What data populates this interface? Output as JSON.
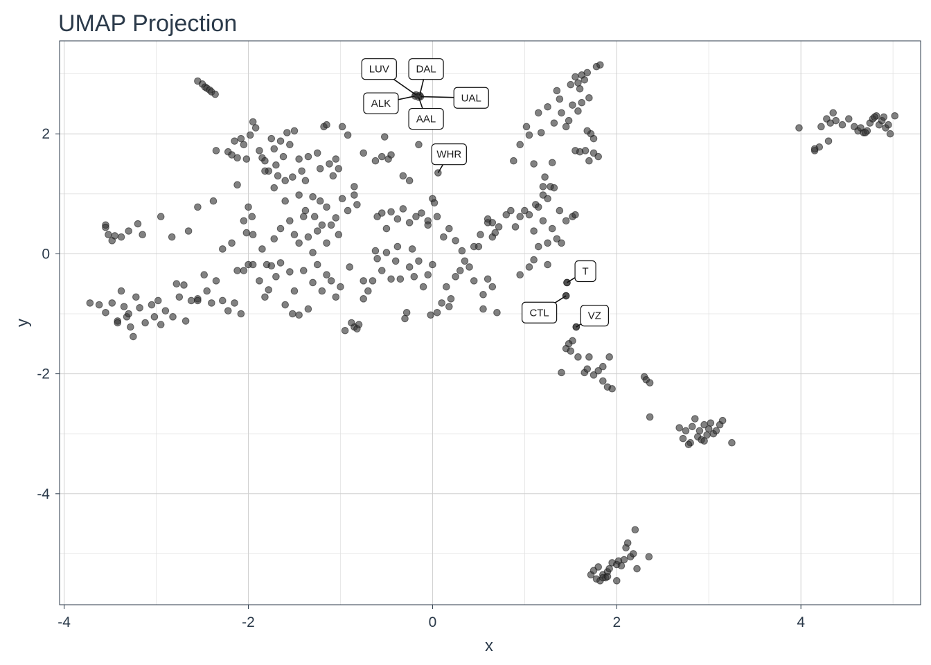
{
  "chart_data": {
    "type": "scatter",
    "title": "UMAP Projection",
    "xlabel": "x",
    "ylabel": "y",
    "xlim": [
      -4.05,
      5.3
    ],
    "ylim": [
      -5.85,
      3.55
    ],
    "xticks": [
      -4,
      -2,
      0,
      2,
      4
    ],
    "yticks": [
      -4,
      -2,
      0,
      2
    ],
    "grid": true,
    "labels": [
      {
        "text": "LUV",
        "x": -0.18,
        "y": 2.65,
        "lx": -0.58,
        "ly": 3.08
      },
      {
        "text": "DAL",
        "x": -0.14,
        "y": 2.64,
        "lx": -0.07,
        "ly": 3.08
      },
      {
        "text": "ALK",
        "x": -0.19,
        "y": 2.63,
        "lx": -0.56,
        "ly": 2.51
      },
      {
        "text": "UAL",
        "x": -0.13,
        "y": 2.62,
        "lx": 0.42,
        "ly": 2.6
      },
      {
        "text": "AAL",
        "x": -0.15,
        "y": 2.61,
        "lx": -0.07,
        "ly": 2.25
      },
      {
        "text": "WHR",
        "x": 0.06,
        "y": 1.35,
        "lx": 0.18,
        "ly": 1.66
      },
      {
        "text": "T",
        "x": 1.46,
        "y": -0.48,
        "lx": 1.66,
        "ly": -0.29
      },
      {
        "text": "CTL",
        "x": 1.45,
        "y": -0.7,
        "lx": 1.16,
        "ly": -0.98
      },
      {
        "text": "VZ",
        "x": 1.56,
        "y": -1.22,
        "lx": 1.76,
        "ly": -1.03
      }
    ],
    "points": [
      [
        -2.55,
        2.88
      ],
      [
        -2.5,
        2.83
      ],
      [
        -2.47,
        2.78
      ],
      [
        -2.45,
        2.76
      ],
      [
        -2.42,
        2.73
      ],
      [
        -2.4,
        2.7
      ],
      [
        -2.36,
        2.66
      ],
      [
        -3.55,
        0.48
      ],
      [
        -3.55,
        0.44
      ],
      [
        -3.52,
        0.32
      ],
      [
        -3.48,
        0.22
      ],
      [
        -3.45,
        0.3
      ],
      [
        -3.38,
        0.28
      ],
      [
        -3.3,
        0.38
      ],
      [
        -3.2,
        0.5
      ],
      [
        -3.15,
        0.32
      ],
      [
        -2.95,
        0.62
      ],
      [
        -2.83,
        0.28
      ],
      [
        -2.65,
        0.38
      ],
      [
        -2.55,
        0.78
      ],
      [
        -2.38,
        0.88
      ],
      [
        -2.28,
        0.08
      ],
      [
        -2.18,
        0.18
      ],
      [
        -2.12,
        -0.28
      ],
      [
        -2.02,
        0.35
      ],
      [
        -1.96,
        0.62
      ],
      [
        -2.0,
        0.78
      ],
      [
        -3.72,
        -0.82
      ],
      [
        -3.62,
        -0.85
      ],
      [
        -3.55,
        -0.98
      ],
      [
        -3.48,
        -0.82
      ],
      [
        -3.42,
        -1.12
      ],
      [
        -3.38,
        -0.62
      ],
      [
        -3.35,
        -0.88
      ],
      [
        -3.32,
        -1.05
      ],
      [
        -3.28,
        -1.22
      ],
      [
        -3.25,
        -1.38
      ],
      [
        -3.22,
        -0.72
      ],
      [
        -3.18,
        -0.9
      ],
      [
        -3.12,
        -1.15
      ],
      [
        -3.05,
        -0.85
      ],
      [
        -2.98,
        -0.78
      ],
      [
        -2.95,
        -1.18
      ],
      [
        -2.9,
        -0.95
      ],
      [
        -2.82,
        -1.05
      ],
      [
        -2.78,
        -0.5
      ],
      [
        -2.75,
        -0.72
      ],
      [
        -2.7,
        -0.52
      ],
      [
        -2.68,
        -1.12
      ],
      [
        -2.62,
        -0.78
      ],
      [
        -2.55,
        -0.75
      ],
      [
        -2.48,
        -0.35
      ],
      [
        -2.45,
        -0.62
      ],
      [
        -2.4,
        -0.82
      ],
      [
        -2.35,
        -0.45
      ],
      [
        -2.28,
        -0.78
      ],
      [
        -2.22,
        -0.95
      ],
      [
        -2.15,
        -0.82
      ],
      [
        -2.08,
        -1.0
      ],
      [
        -2.05,
        -0.28
      ],
      [
        -2.0,
        -0.18
      ],
      [
        -2.55,
        -0.78
      ],
      [
        -3.02,
        -1.05
      ],
      [
        -3.42,
        -1.15
      ],
      [
        -3.3,
        -1.0
      ],
      [
        -2.35,
        1.72
      ],
      [
        -2.22,
        1.7
      ],
      [
        -2.18,
        1.65
      ],
      [
        -2.15,
        1.88
      ],
      [
        -2.12,
        1.6
      ],
      [
        -2.08,
        1.92
      ],
      [
        -2.05,
        1.82
      ],
      [
        -2.02,
        1.58
      ],
      [
        -1.98,
        1.98
      ],
      [
        -1.95,
        2.2
      ],
      [
        -1.92,
        2.1
      ],
      [
        -1.88,
        1.72
      ],
      [
        -1.85,
        1.6
      ],
      [
        -1.82,
        1.55
      ],
      [
        -1.78,
        1.38
      ],
      [
        -1.75,
        1.92
      ],
      [
        -1.72,
        1.75
      ],
      [
        -1.7,
        1.48
      ],
      [
        -1.68,
        1.3
      ],
      [
        -1.65,
        1.88
      ],
      [
        -1.62,
        1.62
      ],
      [
        -1.58,
        2.02
      ],
      [
        -1.55,
        1.82
      ],
      [
        -1.52,
        1.28
      ],
      [
        -1.5,
        2.05
      ],
      [
        -1.45,
        1.58
      ],
      [
        -1.42,
        1.38
      ],
      [
        -1.38,
        1.22
      ],
      [
        -1.35,
        1.62
      ],
      [
        -1.3,
        0.95
      ],
      [
        -1.25,
        1.68
      ],
      [
        -1.22,
        1.42
      ],
      [
        -1.18,
        2.12
      ],
      [
        -1.15,
        2.15
      ],
      [
        -1.12,
        1.5
      ],
      [
        -1.08,
        1.3
      ],
      [
        -1.05,
        1.58
      ],
      [
        -1.02,
        1.42
      ],
      [
        -0.98,
        2.12
      ],
      [
        -0.92,
        1.98
      ],
      [
        -0.85,
        1.12
      ],
      [
        -0.75,
        1.68
      ],
      [
        -0.62,
        1.55
      ],
      [
        -0.55,
        1.62
      ],
      [
        -0.52,
        1.95
      ],
      [
        -0.48,
        1.58
      ],
      [
        -0.45,
        1.65
      ],
      [
        -0.32,
        1.3
      ],
      [
        -0.25,
        1.22
      ],
      [
        -0.15,
        1.82
      ],
      [
        -2.12,
        1.15
      ],
      [
        -1.82,
        1.38
      ],
      [
        -1.72,
        1.1
      ],
      [
        -1.6,
        1.22
      ],
      [
        -1.45,
        0.98
      ],
      [
        -1.38,
        0.72
      ],
      [
        -1.28,
        0.62
      ],
      [
        -1.22,
        0.88
      ],
      [
        -1.15,
        0.78
      ],
      [
        -1.1,
        0.48
      ],
      [
        -1.05,
        0.6
      ],
      [
        -1.02,
        0.32
      ],
      [
        -0.98,
        0.92
      ],
      [
        -0.92,
        0.72
      ],
      [
        -0.85,
        0.98
      ],
      [
        -0.82,
        0.82
      ],
      [
        -2.05,
        0.55
      ],
      [
        -1.95,
        0.32
      ],
      [
        -1.85,
        0.08
      ],
      [
        -1.8,
        -0.18
      ],
      [
        -1.72,
        0.25
      ],
      [
        -1.65,
        0.42
      ],
      [
        -1.6,
        0.88
      ],
      [
        -1.55,
        0.55
      ],
      [
        -1.5,
        0.32
      ],
      [
        -1.45,
        0.18
      ],
      [
        -1.4,
        0.62
      ],
      [
        -1.35,
        0.28
      ],
      [
        -1.3,
        0.02
      ],
      [
        -1.25,
        0.38
      ],
      [
        -1.2,
        0.48
      ],
      [
        -1.15,
        0.18
      ],
      [
        -1.95,
        -0.18
      ],
      [
        -1.88,
        -0.45
      ],
      [
        -1.82,
        -0.72
      ],
      [
        -1.78,
        -0.6
      ],
      [
        -1.75,
        -0.2
      ],
      [
        -1.7,
        -0.38
      ],
      [
        -1.65,
        -0.15
      ],
      [
        -1.6,
        -0.85
      ],
      [
        -1.55,
        -0.3
      ],
      [
        -1.5,
        -0.62
      ],
      [
        -1.45,
        -1.02
      ],
      [
        -1.4,
        -0.28
      ],
      [
        -1.35,
        -0.92
      ],
      [
        -1.3,
        -0.48
      ],
      [
        -1.25,
        -0.18
      ],
      [
        -1.2,
        -0.62
      ],
      [
        -1.15,
        -0.35
      ],
      [
        -1.1,
        -0.45
      ],
      [
        -1.05,
        -0.72
      ],
      [
        -1.0,
        -0.55
      ],
      [
        -0.95,
        -1.28
      ],
      [
        -0.9,
        -0.22
      ],
      [
        -0.85,
        -1.22
      ],
      [
        -0.8,
        -1.18
      ],
      [
        -0.75,
        -0.75
      ],
      [
        -0.7,
        -0.62
      ],
      [
        -0.65,
        -0.45
      ],
      [
        -0.6,
        -0.08
      ],
      [
        -0.55,
        -0.28
      ],
      [
        -0.5,
        0.02
      ],
      [
        -0.45,
        -0.42
      ],
      [
        -0.4,
        -0.12
      ],
      [
        -0.35,
        -0.42
      ],
      [
        -0.3,
        -1.08
      ],
      [
        -0.25,
        -0.22
      ],
      [
        -0.2,
        -0.38
      ],
      [
        -0.15,
        -0.12
      ],
      [
        -0.1,
        -0.55
      ],
      [
        -0.05,
        -0.35
      ],
      [
        0.0,
        -0.18
      ],
      [
        0.05,
        -0.98
      ],
      [
        0.1,
        -0.82
      ],
      [
        0.15,
        -0.55
      ],
      [
        0.2,
        -0.75
      ],
      [
        0.25,
        -0.38
      ],
      [
        0.3,
        -0.28
      ],
      [
        0.35,
        -0.12
      ],
      [
        0.4,
        -0.22
      ],
      [
        0.45,
        -0.45
      ],
      [
        0.5,
        0.12
      ],
      [
        0.55,
        -0.68
      ],
      [
        0.6,
        -0.42
      ],
      [
        0.65,
        -0.55
      ],
      [
        0.7,
        -0.98
      ],
      [
        0.55,
        -0.92
      ],
      [
        -0.75,
        -0.45
      ],
      [
        -1.52,
        -1.0
      ],
      [
        -0.88,
        -1.15
      ],
      [
        -0.82,
        -1.25
      ],
      [
        -0.28,
        -0.98
      ],
      [
        -0.02,
        -1.02
      ],
      [
        0.18,
        -0.88
      ],
      [
        -0.6,
        0.62
      ],
      [
        -0.55,
        0.68
      ],
      [
        -0.5,
        0.42
      ],
      [
        -0.45,
        0.7
      ],
      [
        -0.38,
        0.58
      ],
      [
        -0.32,
        0.75
      ],
      [
        -0.25,
        0.52
      ],
      [
        -0.18,
        0.62
      ],
      [
        -0.12,
        0.68
      ],
      [
        -0.05,
        0.55
      ],
      [
        0.0,
        0.92
      ],
      [
        0.02,
        0.85
      ],
      [
        0.05,
        0.62
      ],
      [
        0.12,
        0.28
      ],
      [
        0.18,
        0.42
      ],
      [
        0.25,
        0.22
      ],
      [
        0.32,
        0.05
      ],
      [
        0.45,
        0.12
      ],
      [
        0.52,
        0.32
      ],
      [
        0.6,
        0.52
      ],
      [
        0.65,
        0.28
      ],
      [
        -0.62,
        0.05
      ],
      [
        -0.38,
        0.12
      ],
      [
        -0.22,
        0.08
      ],
      [
        -0.05,
        0.48
      ],
      [
        0.88,
        1.55
      ],
      [
        0.95,
        1.82
      ],
      [
        1.02,
        2.12
      ],
      [
        1.05,
        1.98
      ],
      [
        1.1,
        1.5
      ],
      [
        1.15,
        2.35
      ],
      [
        1.18,
        2.02
      ],
      [
        1.22,
        1.28
      ],
      [
        1.25,
        2.45
      ],
      [
        1.28,
        1.12
      ],
      [
        1.32,
        2.18
      ],
      [
        1.35,
        2.72
      ],
      [
        1.38,
        2.58
      ],
      [
        1.4,
        2.35
      ],
      [
        1.45,
        2.12
      ],
      [
        1.48,
        2.22
      ],
      [
        1.5,
        2.82
      ],
      [
        1.52,
        2.48
      ],
      [
        1.55,
        2.95
      ],
      [
        1.58,
        2.38
      ],
      [
        1.6,
        2.75
      ],
      [
        1.62,
        2.52
      ],
      [
        1.65,
        2.9
      ],
      [
        1.68,
        3.02
      ],
      [
        1.7,
        2.6
      ],
      [
        1.72,
        2.0
      ],
      [
        1.75,
        1.92
      ],
      [
        1.78,
        3.12
      ],
      [
        1.82,
        3.15
      ],
      [
        1.66,
        1.72
      ],
      [
        1.7,
        1.55
      ],
      [
        1.6,
        1.7
      ],
      [
        1.55,
        1.72
      ],
      [
        1.68,
        2.05
      ],
      [
        1.75,
        1.68
      ],
      [
        1.8,
        1.62
      ],
      [
        1.58,
        2.85
      ],
      [
        1.62,
        2.98
      ],
      [
        1.3,
        1.52
      ],
      [
        1.2,
        1.12
      ],
      [
        0.8,
        0.65
      ],
      [
        0.85,
        0.72
      ],
      [
        0.9,
        0.45
      ],
      [
        0.95,
        0.62
      ],
      [
        1.0,
        0.72
      ],
      [
        1.05,
        0.65
      ],
      [
        1.1,
        0.38
      ],
      [
        1.12,
        0.82
      ],
      [
        1.15,
        0.78
      ],
      [
        1.2,
        0.55
      ],
      [
        1.25,
        0.18
      ],
      [
        1.3,
        0.42
      ],
      [
        1.35,
        0.25
      ],
      [
        1.4,
        0.18
      ],
      [
        1.45,
        0.55
      ],
      [
        1.52,
        0.62
      ],
      [
        1.55,
        0.65
      ],
      [
        1.2,
        0.98
      ],
      [
        1.25,
        0.92
      ],
      [
        1.32,
        1.1
      ],
      [
        1.38,
        0.72
      ],
      [
        0.72,
        0.45
      ],
      [
        0.68,
        0.35
      ],
      [
        0.65,
        0.52
      ],
      [
        0.6,
        0.58
      ],
      [
        1.25,
        -0.18
      ],
      [
        1.1,
        -0.1
      ],
      [
        1.05,
        -0.22
      ],
      [
        0.95,
        -0.35
      ],
      [
        1.15,
        0.12
      ],
      [
        1.46,
        -0.48
      ],
      [
        1.45,
        -0.7
      ],
      [
        1.56,
        -1.22
      ],
      [
        1.52,
        -1.45
      ],
      [
        1.45,
        -1.58
      ],
      [
        1.5,
        -1.62
      ],
      [
        1.58,
        -1.72
      ],
      [
        1.65,
        -1.98
      ],
      [
        1.7,
        -1.72
      ],
      [
        1.75,
        -2.02
      ],
      [
        1.8,
        -1.95
      ],
      [
        1.85,
        -2.12
      ],
      [
        1.9,
        -2.22
      ],
      [
        1.92,
        -1.72
      ],
      [
        1.95,
        -2.25
      ],
      [
        1.85,
        -1.88
      ],
      [
        1.68,
        -1.92
      ],
      [
        1.4,
        -1.98
      ],
      [
        1.48,
        -1.5
      ],
      [
        2.3,
        -2.05
      ],
      [
        2.32,
        -2.1
      ],
      [
        2.36,
        -2.15
      ],
      [
        2.36,
        -2.72
      ],
      [
        2.68,
        -2.9
      ],
      [
        2.72,
        -3.08
      ],
      [
        2.75,
        -2.95
      ],
      [
        2.8,
        -3.15
      ],
      [
        2.82,
        -2.88
      ],
      [
        2.85,
        -2.75
      ],
      [
        2.88,
        -3.05
      ],
      [
        2.9,
        -2.95
      ],
      [
        2.92,
        -3.1
      ],
      [
        2.95,
        -2.85
      ],
      [
        2.98,
        -3.02
      ],
      [
        3.0,
        -2.92
      ],
      [
        3.02,
        -2.82
      ],
      [
        3.05,
        -3.0
      ],
      [
        3.08,
        -2.95
      ],
      [
        3.12,
        -2.85
      ],
      [
        3.15,
        -2.78
      ],
      [
        3.25,
        -3.15
      ],
      [
        2.78,
        -3.18
      ],
      [
        2.95,
        -3.12
      ],
      [
        1.72,
        -5.35
      ],
      [
        1.75,
        -5.28
      ],
      [
        1.78,
        -5.42
      ],
      [
        1.8,
        -5.22
      ],
      [
        1.82,
        -5.45
      ],
      [
        1.85,
        -5.35
      ],
      [
        1.88,
        -5.4
      ],
      [
        1.9,
        -5.3
      ],
      [
        1.92,
        -5.25
      ],
      [
        1.95,
        -5.15
      ],
      [
        2.0,
        -5.18
      ],
      [
        2.02,
        -5.12
      ],
      [
        2.05,
        -5.2
      ],
      [
        2.08,
        -5.1
      ],
      [
        2.1,
        -4.9
      ],
      [
        2.12,
        -4.82
      ],
      [
        2.15,
        -5.05
      ],
      [
        2.18,
        -5.0
      ],
      [
        2.2,
        -4.6
      ],
      [
        2.22,
        -5.25
      ],
      [
        2.35,
        -5.05
      ],
      [
        2.0,
        -5.45
      ],
      [
        1.85,
        -5.4
      ],
      [
        1.9,
        -5.38
      ],
      [
        3.98,
        2.1
      ],
      [
        4.15,
        1.72
      ],
      [
        4.2,
        1.78
      ],
      [
        4.22,
        2.12
      ],
      [
        4.28,
        2.25
      ],
      [
        4.32,
        2.18
      ],
      [
        4.35,
        2.35
      ],
      [
        4.38,
        2.22
      ],
      [
        4.45,
        2.15
      ],
      [
        4.52,
        2.25
      ],
      [
        4.58,
        2.12
      ],
      [
        4.62,
        2.05
      ],
      [
        4.65,
        2.1
      ],
      [
        4.68,
        2.02
      ],
      [
        4.72,
        2.05
      ],
      [
        4.75,
        2.18
      ],
      [
        4.78,
        2.25
      ],
      [
        4.82,
        2.3
      ],
      [
        4.85,
        2.15
      ],
      [
        4.88,
        2.22
      ],
      [
        4.9,
        2.28
      ],
      [
        4.92,
        2.1
      ],
      [
        4.95,
        2.15
      ],
      [
        4.97,
        2.0
      ],
      [
        5.02,
        2.3
      ],
      [
        4.7,
        2.02
      ],
      [
        4.8,
        2.28
      ],
      [
        4.15,
        1.75
      ],
      [
        4.3,
        1.88
      ]
    ]
  }
}
